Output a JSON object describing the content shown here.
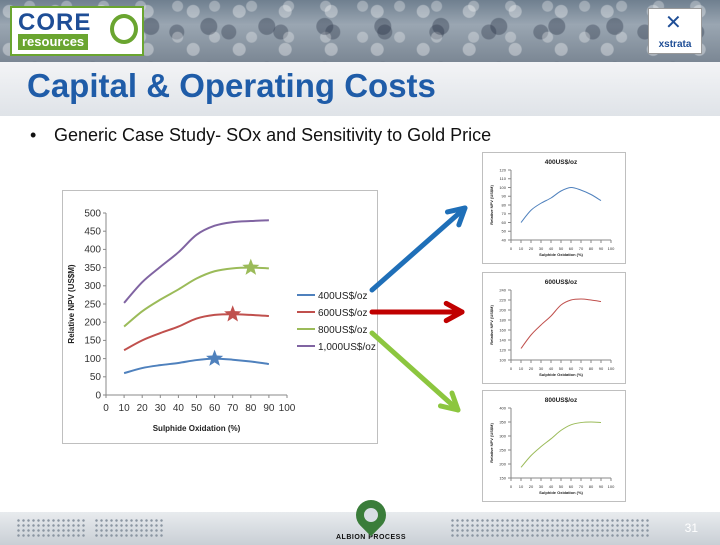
{
  "header": {
    "logo_left": {
      "line1": "CORE",
      "line2": "resources"
    },
    "logo_right": {
      "text": "xstrata"
    }
  },
  "slide": {
    "title": "Capital & Operating Costs",
    "bullet": "Generic Case Study- SOx and Sensitivity to Gold Price",
    "page_number": "31"
  },
  "footer": {
    "logo_text": "ALBION PROCESS"
  },
  "colors": {
    "title": "#1f5ca8",
    "s400": "#4f81bd",
    "s600": "#c0504d",
    "s800": "#9bbb59",
    "s1000": "#8064a2",
    "arrow_blue": "#1f6fb8",
    "arrow_red": "#c00000",
    "arrow_green": "#8cc63f"
  },
  "chart_data": [
    {
      "type": "line",
      "xlabel": "Sulphide Oxidation (%)",
      "ylabel": "Relative NPV (US$M)",
      "xlim": [
        0,
        100
      ],
      "ylim": [
        0,
        500
      ],
      "xticks": [
        0,
        10,
        20,
        30,
        40,
        50,
        60,
        70,
        80,
        90,
        100
      ],
      "yticks": [
        0,
        50,
        100,
        150,
        200,
        250,
        300,
        350,
        400,
        450,
        500
      ],
      "legend": "right",
      "series": [
        {
          "name": "400US$/oz",
          "color": "#4f81bd",
          "x": [
            10,
            20,
            30,
            40,
            50,
            60,
            70,
            80,
            90
          ],
          "y": [
            60,
            74,
            82,
            88,
            96,
            100,
            97,
            92,
            85
          ],
          "marker": {
            "x": 60,
            "y": 100
          }
        },
        {
          "name": "600US$/oz",
          "color": "#c0504d",
          "x": [
            10,
            20,
            30,
            40,
            50,
            60,
            70,
            80,
            90
          ],
          "y": [
            123,
            150,
            170,
            188,
            210,
            220,
            222,
            220,
            217
          ],
          "marker": {
            "x": 70,
            "y": 222
          }
        },
        {
          "name": "800US$/oz",
          "color": "#9bbb59",
          "x": [
            10,
            20,
            30,
            40,
            50,
            60,
            70,
            80,
            90
          ],
          "y": [
            188,
            230,
            262,
            290,
            320,
            340,
            348,
            350,
            348
          ],
          "marker": {
            "x": 80,
            "y": 350
          }
        },
        {
          "name": "1,000US$/oz",
          "color": "#8064a2",
          "x": [
            10,
            20,
            30,
            40,
            50,
            60,
            70,
            80,
            90
          ],
          "y": [
            253,
            310,
            352,
            392,
            440,
            465,
            475,
            478,
            480
          ]
        }
      ]
    },
    {
      "type": "line",
      "title": "400US$/oz",
      "xlabel": "Sulphide Oxidation (%)",
      "ylabel": "Relative NPV (US$M)",
      "xlim": [
        0,
        100
      ],
      "ylim": [
        40,
        120
      ],
      "xticks": [
        0,
        10,
        20,
        30,
        40,
        50,
        60,
        70,
        80,
        90,
        100
      ],
      "yticks": [
        40,
        50,
        60,
        70,
        80,
        90,
        100,
        110,
        120
      ],
      "series": [
        {
          "color": "#4f81bd",
          "x": [
            10,
            20,
            30,
            40,
            50,
            60,
            70,
            80,
            90
          ],
          "y": [
            60,
            74,
            82,
            88,
            96,
            100,
            97,
            92,
            85
          ]
        }
      ]
    },
    {
      "type": "line",
      "title": "600US$/oz",
      "xlabel": "Sulphide Oxidation (%)",
      "ylabel": "Relative NPV (US$M)",
      "xlim": [
        0,
        100
      ],
      "ylim": [
        100,
        240
      ],
      "xticks": [
        0,
        10,
        20,
        30,
        40,
        50,
        60,
        70,
        80,
        90,
        100
      ],
      "yticks": [
        100,
        120,
        140,
        160,
        180,
        200,
        220,
        240
      ],
      "series": [
        {
          "color": "#c0504d",
          "x": [
            10,
            20,
            30,
            40,
            50,
            60,
            70,
            80,
            90
          ],
          "y": [
            123,
            150,
            170,
            188,
            210,
            220,
            222,
            220,
            217
          ]
        }
      ]
    },
    {
      "type": "line",
      "title": "800US$/oz",
      "xlabel": "Sulphide Oxidation (%)",
      "ylabel": "Relative NPV (US$M)",
      "xlim": [
        0,
        100
      ],
      "ylim": [
        150,
        400
      ],
      "xticks": [
        0,
        10,
        20,
        30,
        40,
        50,
        60,
        70,
        80,
        90,
        100
      ],
      "yticks": [
        150,
        200,
        250,
        300,
        350,
        400
      ],
      "series": [
        {
          "color": "#9bbb59",
          "x": [
            10,
            20,
            30,
            40,
            50,
            60,
            70,
            80,
            90
          ],
          "y": [
            188,
            230,
            262,
            290,
            320,
            340,
            348,
            350,
            348
          ]
        }
      ]
    }
  ]
}
